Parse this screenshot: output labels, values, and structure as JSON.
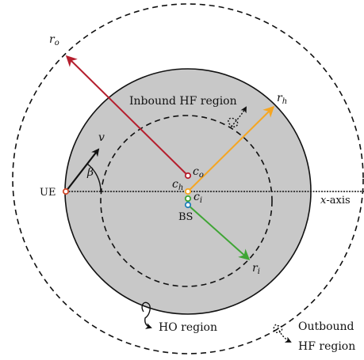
{
  "labels": {
    "r_o": "r",
    "r_o_sub": "o",
    "r_h": "r",
    "r_h_sub": "h",
    "r_i": "r",
    "r_i_sub": "i",
    "v": "v",
    "beta": "β",
    "c_o": "c",
    "c_o_sub": "o",
    "c_h": "c",
    "c_h_sub": "h",
    "c_i": "c",
    "c_i_sub": "i",
    "ue": "UE",
    "bs": "BS",
    "x_axis": "x",
    "x_axis_suffix": "-axis",
    "inbound": "Inbound HF region",
    "ho": "HO region",
    "outbound_1": "Outbound",
    "outbound_2": "HF region"
  },
  "colors": {
    "outer_vector": "#b51f2e",
    "h_vector": "#f5a623",
    "i_vector": "#3fa535",
    "ho_fill": "#c8c8c8",
    "bs_marker": "#1f7fb8",
    "c_o_marker": "#b51f2e",
    "c_h_marker": "#f5a623",
    "c_i_marker": "#3fa535",
    "ue_marker": "#d0492b"
  }
}
